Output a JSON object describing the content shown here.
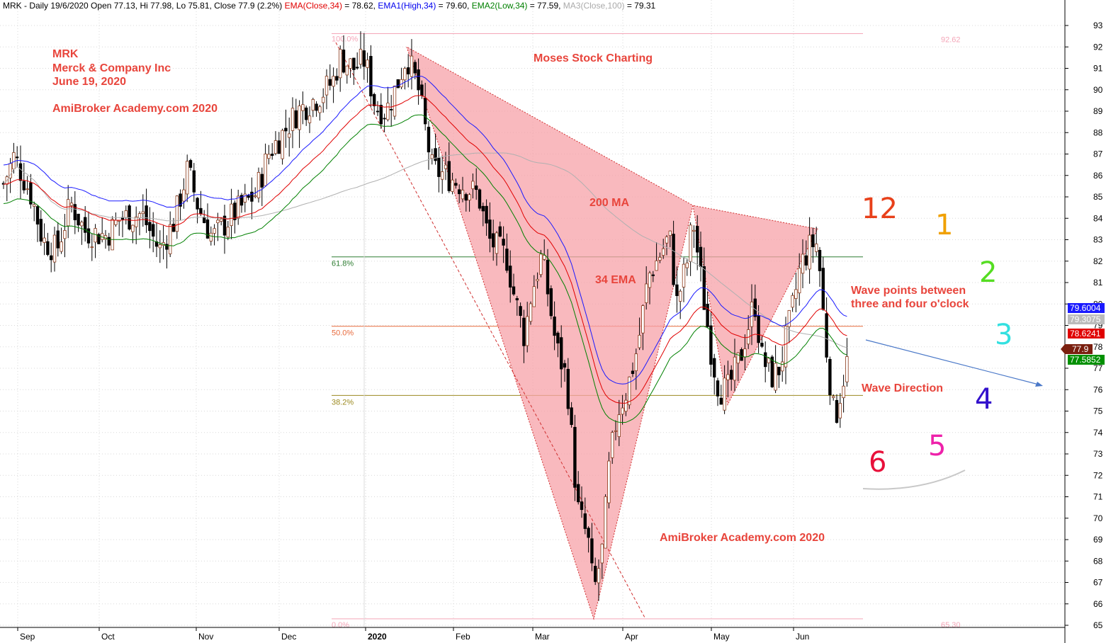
{
  "header": {
    "segments": [
      {
        "text": "MRK - Daily 19/6/2020 Open 77.13, Hi 77.98, Lo 75.81, Close 77.9 (2.2%) ",
        "color": "#000000"
      },
      {
        "text": "EMA(Close,34)",
        "color": "#e00000"
      },
      {
        "text": " = 78.62, ",
        "color": "#000000"
      },
      {
        "text": "EMA1(High,34)",
        "color": "#0000ee"
      },
      {
        "text": " = 79.60, ",
        "color": "#000000"
      },
      {
        "text": "EMA2(Low,34)",
        "color": "#008000"
      },
      {
        "text": " = 77.59, ",
        "color": "#000000"
      },
      {
        "text": "MA3(Close,100)",
        "color": "#aaaaaa"
      },
      {
        "text": " = 79.31",
        "color": "#000000"
      }
    ]
  },
  "annotations": {
    "ticker": "MRK",
    "company": "Merck & Company Inc",
    "date": "June 19, 2020",
    "brand_top": "AmiBroker Academy.com  2020",
    "moses": "Moses Stock Charting",
    "ma200": "200 MA",
    "ema34": "34 EMA",
    "wave_points_1": "Wave points between",
    "wave_points_2": "three and four o'clock",
    "wave_direction": "Wave Direction",
    "brand_bottom": "AmiBroker Academy.com 2020"
  },
  "clock_face": [
    {
      "label": "12",
      "color": "#e8401a"
    },
    {
      "label": "1",
      "color": "#f0a000"
    },
    {
      "label": "2",
      "color": "#55dd22"
    },
    {
      "label": "3",
      "color": "#33e0e0"
    },
    {
      "label": "4",
      "color": "#3311cc"
    },
    {
      "label": "5",
      "color": "#ee22aa"
    },
    {
      "label": "6",
      "color": "#e8103a"
    }
  ],
  "chart_data": {
    "type": "candlestick",
    "symbol": "MRK",
    "y_ticks": [
      65,
      66,
      67,
      68,
      69,
      70,
      71,
      72,
      73,
      74,
      75,
      76,
      77,
      78,
      79,
      80,
      81,
      82,
      83,
      84,
      85,
      86,
      87,
      88,
      89,
      90,
      91,
      92,
      93
    ],
    "ylim": [
      64.6,
      94.3
    ],
    "x_ticks": [
      "Sep",
      "Oct",
      "Nov",
      "Dec",
      "2020",
      "Feb",
      "Mar",
      "Apr",
      "May",
      "Jun"
    ],
    "fibonacci": {
      "high": 92.62,
      "low": 65.3,
      "levels": [
        {
          "label": "100.0%",
          "value": 92.62,
          "color": "#f4a6b8"
        },
        {
          "label": "61.8%",
          "value": 82.2,
          "color": "#2e7d32"
        },
        {
          "label": "50.0%",
          "value": 78.96,
          "color": "#e86a3c"
        },
        {
          "label": "38.2%",
          "value": 75.73,
          "color": "#9c8a20"
        },
        {
          "label": "0.0%",
          "value": 65.3,
          "color": "#f4a6b8"
        }
      ],
      "high_label": "92.62",
      "low_label": "65.30"
    },
    "last_values": [
      {
        "label": "79.6004",
        "value": 79.6,
        "color": "#1a1aff"
      },
      {
        "label": "79.3075",
        "value": 79.31,
        "color": "#bbbbbb"
      },
      {
        "label": "78.6241",
        "value": 78.62,
        "color": "#e00000"
      },
      {
        "label": "77.9",
        "value": 77.9,
        "color": "#7a1f0f"
      },
      {
        "label": "77.5852",
        "value": 77.59,
        "color": "#009000"
      }
    ],
    "pattern_points": [
      {
        "date": "2020-01-14",
        "price": 92.0
      },
      {
        "date": "2020-03-23",
        "price": 65.3
      },
      {
        "date": "2020-04-21",
        "price": 84.6
      },
      {
        "date": "2020-05-06",
        "price": 75.3
      },
      {
        "date": "2020-06-05",
        "price": 83.5
      }
    ],
    "series_close_monthly": [
      {
        "period": "Sep 2019",
        "close": 84.2
      },
      {
        "period": "Oct 2019",
        "close": 86.7
      },
      {
        "period": "Nov 2019",
        "close": 87.2
      },
      {
        "period": "Dec 2019",
        "close": 90.9
      },
      {
        "period": "Jan 2020",
        "close": 85.4
      },
      {
        "period": "Feb 2020",
        "close": 76.6
      },
      {
        "period": "Mar 2020",
        "close": 76.9
      },
      {
        "period": "Apr 2020",
        "close": 79.3
      },
      {
        "period": "May 2020",
        "close": 80.7
      },
      {
        "period": "Jun 2020",
        "close": 77.9
      }
    ]
  }
}
